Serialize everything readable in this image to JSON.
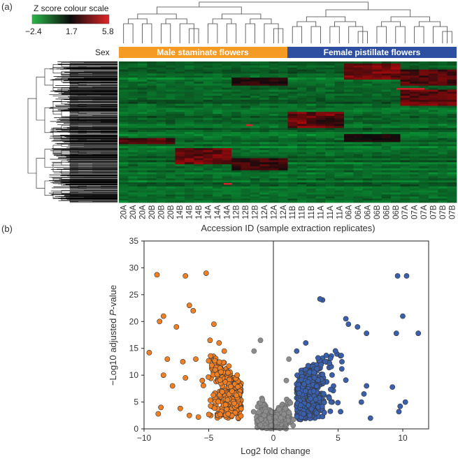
{
  "figure": {
    "panel_a": "(a)",
    "panel_b": "(b)"
  },
  "heatmap": {
    "scale_title": "Z score colour scale",
    "scale_ticks": [
      "−2.4",
      "1.7",
      "5.8"
    ],
    "scale_values": [
      -2.4,
      1.7,
      5.8
    ],
    "sex_label": "Sex",
    "groups": [
      {
        "label": "Male staminate flowers",
        "color": "#f59a23"
      },
      {
        "label": "Female pistillate flowers",
        "color": "#2e4fa1"
      }
    ],
    "samples": [
      "20A",
      "20A",
      "20A",
      "20B",
      "20B",
      "20B",
      "14B",
      "14B",
      "14B",
      "14A",
      "14A",
      "14A",
      "12B",
      "12B",
      "12B",
      "12A",
      "12A",
      "12A",
      "11B",
      "11B",
      "11B",
      "11A",
      "11A",
      "11A",
      "06A",
      "06A",
      "06A",
      "06B",
      "06B",
      "06B",
      "07A",
      "07A",
      "07A",
      "07B",
      "07B",
      "07B"
    ],
    "xlabel": "Accession ID (sample extraction replicates)",
    "colors": {
      "low": "#27b04a",
      "mid": "#0a0a0a",
      "high": "#e0262a"
    }
  },
  "chart_data": {
    "type": "scatter",
    "xlabel": "Log2 fold change",
    "ylabel_prefix": "−Log10 adjusted ",
    "ylabel_italic": "P",
    "ylabel_suffix": "-value",
    "xlim": [
      -10,
      12
    ],
    "ylim": [
      0,
      35
    ],
    "xticks": [
      -10,
      -5,
      0,
      5,
      10
    ],
    "yticks": [
      0,
      5,
      10,
      15,
      20,
      25,
      30,
      35
    ],
    "colors": {
      "male": "#f07f24",
      "female": "#3a60ad",
      "ns": "#8c8c8c"
    },
    "series": [
      {
        "points": [
          [
            -9.0,
            28.7
          ],
          [
            -6.8,
            28.5
          ],
          [
            -5.2,
            29.0
          ],
          [
            -8.5,
            21.0
          ],
          [
            -8.8,
            20.0
          ],
          [
            -6.5,
            23.0
          ],
          [
            -6.2,
            22.0
          ],
          [
            -7.5,
            19.0
          ],
          [
            -9.6,
            14.2
          ],
          [
            -8.2,
            13.0
          ],
          [
            -7.0,
            12.5
          ],
          [
            -6.0,
            13.0
          ],
          [
            -4.6,
            19.5
          ],
          [
            -4.2,
            16.0
          ],
          [
            -3.8,
            14.5
          ],
          [
            -4.9,
            16.5
          ],
          [
            -8.7,
            4.0
          ],
          [
            -8.9,
            2.8
          ],
          [
            -7.2,
            3.8
          ],
          [
            -6.5,
            2.5
          ],
          [
            -5.8,
            2.2
          ],
          [
            -5.5,
            9.0
          ],
          [
            -6.8,
            9.5
          ],
          [
            -7.8,
            8.0
          ],
          [
            -8.5,
            10.0
          ],
          [
            -3.5,
            2.8
          ],
          [
            -3.2,
            7.0
          ],
          [
            -2.8,
            10.0
          ],
          [
            -4.5,
            11.0
          ]
        ]
      },
      {
        "points": [
          [
            9.6,
            28.5
          ],
          [
            10.3,
            28.5
          ],
          [
            10.0,
            21.0
          ],
          [
            9.5,
            17.8
          ],
          [
            11.2,
            17.8
          ],
          [
            9.2,
            7.8
          ],
          [
            10.2,
            5.0
          ],
          [
            9.8,
            4.2
          ],
          [
            9.7,
            3.2
          ],
          [
            7.2,
            17.8
          ],
          [
            6.5,
            19.0
          ],
          [
            5.8,
            19.5
          ],
          [
            5.6,
            20.5
          ],
          [
            3.8,
            24.0
          ],
          [
            3.6,
            24.2
          ],
          [
            7.2,
            8.0
          ],
          [
            7.5,
            2.0
          ],
          [
            6.8,
            5.0
          ],
          [
            7.0,
            6.5
          ],
          [
            1.8,
            14.5
          ],
          [
            2.5,
            16.0
          ]
        ]
      },
      {
        "points": [
          [
            -1.5,
            14.5
          ],
          [
            -1.0,
            16.5
          ],
          [
            1.2,
            13.0
          ],
          [
            1.0,
            9.0
          ]
        ]
      }
    ]
  }
}
